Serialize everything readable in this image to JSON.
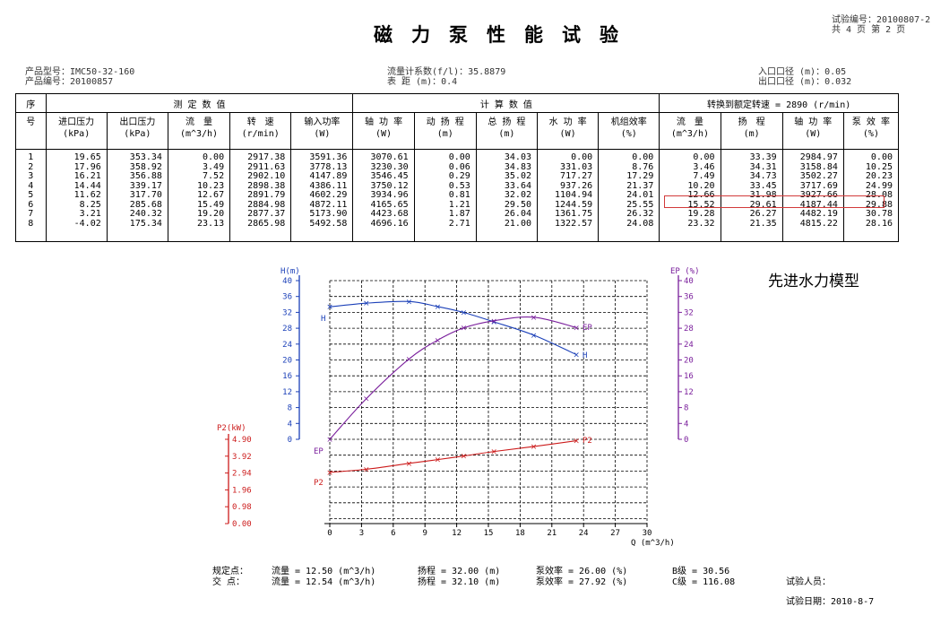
{
  "header": {
    "test_no_label": "试验编号：20100807-2",
    "pages_label": "共 4 页  第 2 页",
    "title": "磁力泵性能试验",
    "product_model": "产品型号：IMC50-32-160",
    "product_no": "产品编号：20100857",
    "flow_coef": "流量计系数(f/l)：35.8879",
    "meter_distance": "表      距  (m)：0.4",
    "inlet_dia": "入口口径 (m)：0.05",
    "outlet_dia": "出口口径 (m)：0.032"
  },
  "table": {
    "group_headers": {
      "seq": "序",
      "seq2": "号",
      "measured": "测          定          数          值",
      "calculated": "计          算          数          值",
      "converted": "转换到额定转速 = 2890 (r/min)"
    },
    "columns": [
      {
        "name": "进口压力",
        "unit": "(kPa)"
      },
      {
        "name": "出口压力",
        "unit": "(kPa)"
      },
      {
        "name": "流　量",
        "unit": "(m^3/h)"
      },
      {
        "name": "转　速",
        "unit": "(r/min)"
      },
      {
        "name": "输入功率",
        "unit": "(W)"
      },
      {
        "name": "轴 功 率",
        "unit": "(W)"
      },
      {
        "name": "动 扬 程",
        "unit": "(m)"
      },
      {
        "name": "总 扬 程",
        "unit": "(m)"
      },
      {
        "name": "水 功 率",
        "unit": "(W)"
      },
      {
        "name": "机组效率",
        "unit": "(%)"
      },
      {
        "name": "流　量",
        "unit": "(m^3/h)"
      },
      {
        "name": "扬　程",
        "unit": "(m)"
      },
      {
        "name": "轴 功 率",
        "unit": "(W)"
      },
      {
        "name": "泵 效 率",
        "unit": "(%)"
      }
    ],
    "rows": [
      [
        "1",
        "19.65",
        "353.34",
        "0.00",
        "2917.38",
        "3591.36",
        "3070.61",
        "0.00",
        "34.03",
        "0.00",
        "0.00",
        "0.00",
        "33.39",
        "2984.97",
        "0.00"
      ],
      [
        "2",
        "17.96",
        "358.92",
        "3.49",
        "2911.63",
        "3778.13",
        "3230.30",
        "0.06",
        "34.83",
        "331.03",
        "8.76",
        "3.46",
        "34.31",
        "3158.84",
        "10.25"
      ],
      [
        "3",
        "16.21",
        "356.88",
        "7.52",
        "2902.10",
        "4147.89",
        "3546.45",
        "0.29",
        "35.02",
        "717.27",
        "17.29",
        "7.49",
        "34.73",
        "3502.27",
        "20.23"
      ],
      [
        "4",
        "14.44",
        "339.17",
        "10.23",
        "2898.38",
        "4386.11",
        "3750.12",
        "0.53",
        "33.64",
        "937.26",
        "21.37",
        "10.20",
        "33.45",
        "3717.69",
        "24.99"
      ],
      [
        "5",
        "11.62",
        "317.70",
        "12.67",
        "2891.79",
        "4602.29",
        "3934.96",
        "0.81",
        "32.02",
        "1104.94",
        "24.01",
        "12.66",
        "31.98",
        "3927.66",
        "28.08"
      ],
      [
        "6",
        "8.25",
        "285.68",
        "15.49",
        "2884.98",
        "4872.11",
        "4165.65",
        "1.21",
        "29.50",
        "1244.59",
        "25.55",
        "15.52",
        "29.61",
        "4187.44",
        "29.88"
      ],
      [
        "7",
        "3.21",
        "240.32",
        "19.20",
        "2877.37",
        "5173.90",
        "4423.68",
        "1.87",
        "26.04",
        "1361.75",
        "26.32",
        "19.28",
        "26.27",
        "4482.19",
        "30.78"
      ],
      [
        "8",
        "-4.02",
        "175.34",
        "23.13",
        "2865.98",
        "5492.58",
        "4696.16",
        "2.71",
        "21.00",
        "1322.57",
        "24.08",
        "23.32",
        "21.35",
        "4815.22",
        "28.16"
      ]
    ]
  },
  "model_text": "先进水力模型",
  "chart_data": {
    "type": "line",
    "xlabel": "Q (m^3/h)",
    "x_ticks": [
      "0",
      "3",
      "6",
      "9",
      "12",
      "15",
      "18",
      "21",
      "24",
      "27",
      "30"
    ],
    "xlim": [
      0,
      30
    ],
    "axes": {
      "H": {
        "label": "H(m)",
        "ylim": [
          0,
          40
        ],
        "ticks": [
          "0",
          "4",
          "8",
          "12",
          "16",
          "20",
          "24",
          "28",
          "32",
          "36",
          "40"
        ]
      },
      "EP": {
        "label": "EP (%)",
        "ylim": [
          0,
          40
        ],
        "ticks": [
          "0",
          "4",
          "8",
          "12",
          "16",
          "20",
          "24",
          "28",
          "32",
          "36",
          "40"
        ]
      },
      "P2": {
        "label": "P2(kW)",
        "ylim": [
          0,
          4.9
        ],
        "ticks": [
          "0.00",
          "0.98",
          "1.96",
          "2.94",
          "3.92",
          "4.90"
        ]
      }
    },
    "series": [
      {
        "name": "H",
        "axis": "H",
        "color": "#1a3fb8",
        "x": [
          0.0,
          3.46,
          7.49,
          10.2,
          12.66,
          15.52,
          19.28,
          23.32
        ],
        "y": [
          33.39,
          34.31,
          34.73,
          33.45,
          31.98,
          29.61,
          26.27,
          21.35
        ]
      },
      {
        "name": "EP",
        "axis": "EP",
        "color": "#7a1f9c",
        "x": [
          0.0,
          3.46,
          7.49,
          10.2,
          12.66,
          15.52,
          19.28,
          23.32
        ],
        "y": [
          0.0,
          10.25,
          20.23,
          24.99,
          28.08,
          29.88,
          30.78,
          28.16
        ]
      },
      {
        "name": "P2",
        "axis": "P2",
        "color": "#cc1b1b",
        "x": [
          0.0,
          3.46,
          7.49,
          10.2,
          12.66,
          15.52,
          19.28,
          23.32
        ],
        "y": [
          2.98,
          3.16,
          3.5,
          3.72,
          3.93,
          4.19,
          4.48,
          4.82
        ]
      }
    ],
    "curve_labels": {
      "H_left": "H",
      "H_right": "H",
      "EP_left": "EP",
      "EP_right": "EP",
      "P2_left": "P2",
      "P2_right": "P2"
    }
  },
  "bottom": {
    "spec_label": "规定点：",
    "spec_flow": "流量 = 12.50 (m^3/h)",
    "spec_head": "扬程 = 32.00 (m)",
    "spec_eff": "泵效率 = 26.00 (%)",
    "spec_class": "B级 = 30.56",
    "cross_label": "交  点：",
    "cross_flow": "流量 = 12.54 (m^3/h)",
    "cross_head": "扬程 = 32.10 (m)",
    "cross_eff": "泵效率 = 27.92 (%)",
    "cross_class": "C级 = 116.08",
    "tester": "试验人员：",
    "date": "试验日期：2010-8-7"
  }
}
